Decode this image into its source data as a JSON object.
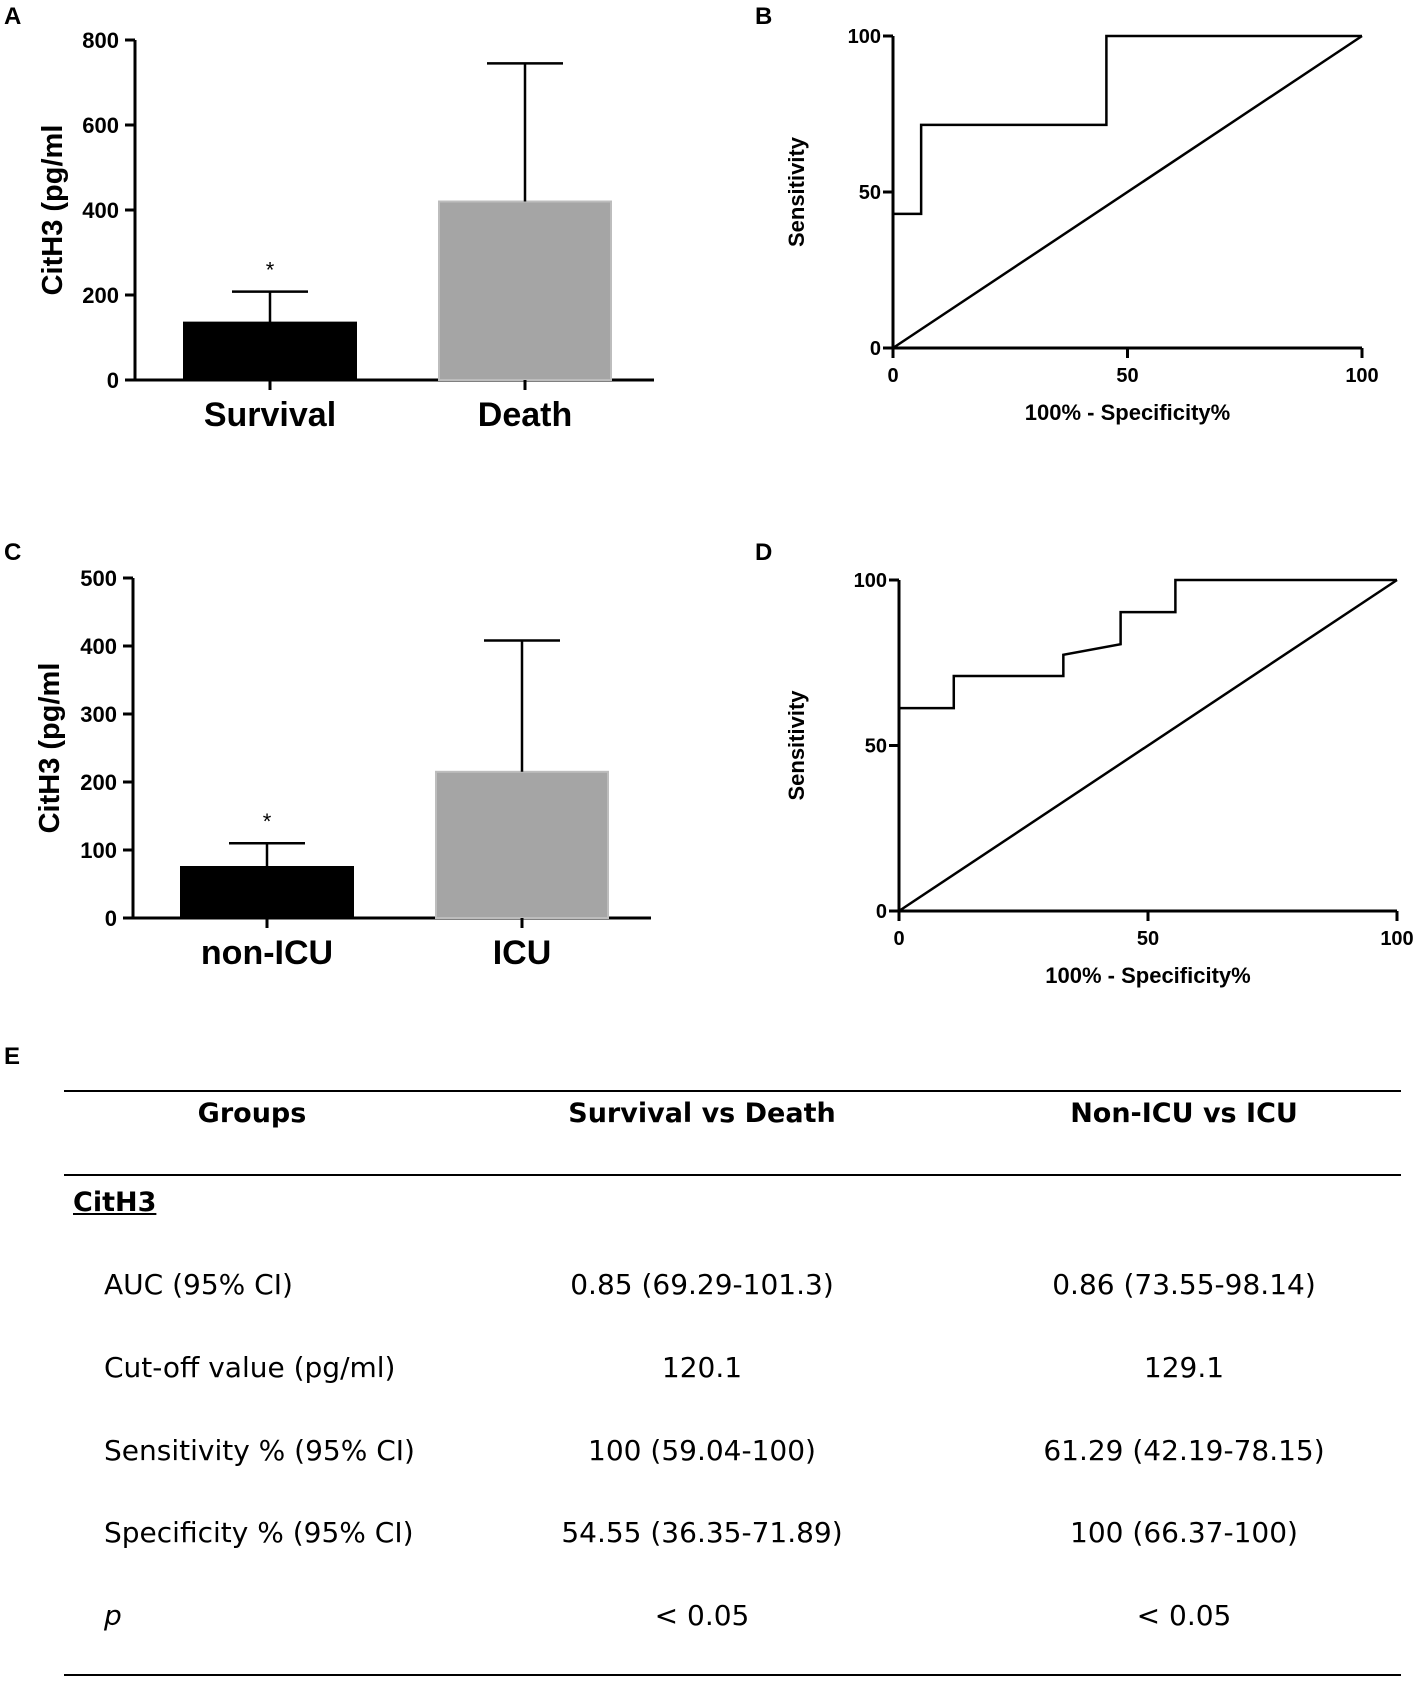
{
  "panels": {
    "a": "A",
    "b": "B",
    "c": "C",
    "d": "D",
    "e": "E"
  },
  "chart_data": [
    {
      "id": "A",
      "type": "bar",
      "categories": [
        "Survival",
        "Death"
      ],
      "values": [
        135,
        420
      ],
      "error_upper": [
        208,
        745
      ],
      "annotations": [
        "*",
        ""
      ],
      "ylabel": "CitH3 (pg/ml",
      "xlabel": "",
      "ylim": [
        0,
        800
      ],
      "yticks": [
        0,
        200,
        400,
        600,
        800
      ],
      "colors": [
        "#000000",
        "#a5a5a5"
      ]
    },
    {
      "id": "B",
      "type": "line",
      "xlabel": "100% - Specificity%",
      "ylabel": "Sensitivity",
      "xlim": [
        0,
        100
      ],
      "ylim": [
        0,
        100
      ],
      "xticks": [
        0,
        50,
        100
      ],
      "yticks": [
        0,
        50,
        100
      ],
      "series": [
        {
          "name": "ROC",
          "x": [
            0,
            6,
            6,
            45.5,
            45.5,
            100
          ],
          "y": [
            43,
            43,
            71.5,
            71.5,
            100,
            100
          ]
        },
        {
          "name": "Reference",
          "x": [
            0,
            100
          ],
          "y": [
            0,
            100
          ]
        }
      ]
    },
    {
      "id": "C",
      "type": "bar",
      "categories": [
        "non-ICU",
        "ICU"
      ],
      "values": [
        75,
        215
      ],
      "error_upper": [
        110,
        408
      ],
      "annotations": [
        "*",
        ""
      ],
      "ylabel": "CitH3 (pg/ml",
      "xlabel": "",
      "ylim": [
        0,
        500
      ],
      "yticks": [
        0,
        100,
        200,
        300,
        400,
        500
      ],
      "colors": [
        "#000000",
        "#a5a5a5"
      ]
    },
    {
      "id": "D",
      "type": "line",
      "xlabel": "100% - Specificity%",
      "ylabel": "Sensitivity",
      "xlim": [
        0,
        100
      ],
      "ylim": [
        0,
        100
      ],
      "xticks": [
        0,
        50,
        100
      ],
      "yticks": [
        0,
        50,
        100
      ],
      "series": [
        {
          "name": "ROC",
          "x": [
            0,
            11,
            11,
            33,
            33,
            44.5,
            44.5,
            55.5,
            55.5,
            100
          ],
          "y": [
            61.3,
            61.3,
            71,
            71,
            77.4,
            80.6,
            90.3,
            90.3,
            100,
            100
          ]
        },
        {
          "name": "Reference",
          "x": [
            0,
            100
          ],
          "y": [
            0,
            100
          ]
        }
      ]
    }
  ],
  "table": {
    "headers": [
      "Groups",
      "Survival vs Death",
      "Non-ICU vs ICU"
    ],
    "section": "CitH3",
    "rows": [
      {
        "label": "AUC (95% CI)",
        "a": "0.85 (69.29-101.3)",
        "b": "0.86 (73.55-98.14)"
      },
      {
        "label": "Cut-off value (pg/ml)",
        "a": "120.1",
        "b": "129.1"
      },
      {
        "label": "Sensitivity % (95% CI)",
        "a": "100 (59.04-100)",
        "b": "61.29 (42.19-78.15)"
      },
      {
        "label": "Specificity % (95% CI)",
        "a": "54.55 (36.35-71.89)",
        "b": "100 (66.37-100)"
      },
      {
        "label": "p",
        "a": "< 0.05",
        "b": "< 0.05"
      }
    ]
  }
}
